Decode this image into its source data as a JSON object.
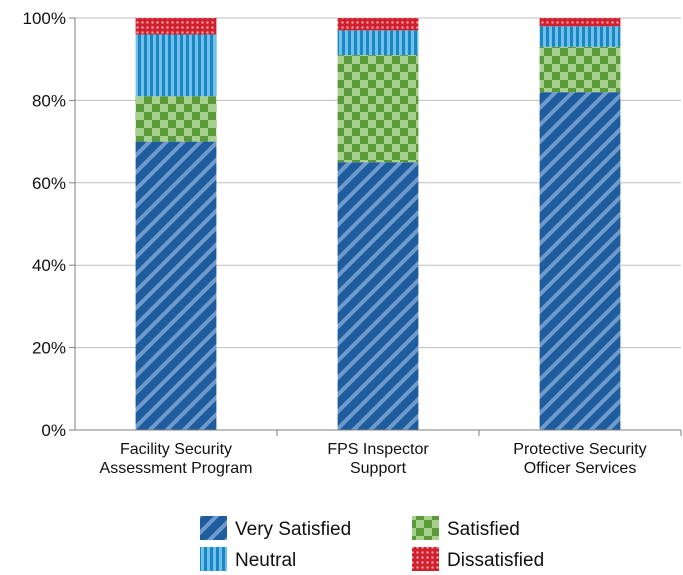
{
  "chart_data": {
    "type": "bar",
    "stacked": true,
    "percent": true,
    "categories": [
      [
        "Facility Security",
        "Assessment Program"
      ],
      [
        "FPS Inspector",
        "Support"
      ],
      [
        "Protective Security",
        "Officer Services"
      ]
    ],
    "series": [
      {
        "name": "Very Satisfied",
        "values": [
          70,
          65,
          82
        ],
        "color": "#1F5C9E",
        "pattern": "diagonal-stripe"
      },
      {
        "name": "Satisfied",
        "values": [
          11,
          26,
          11
        ],
        "color": "#77B043",
        "pattern": "checkerboard"
      },
      {
        "name": "Neutral",
        "values": [
          15,
          6,
          5
        ],
        "color": "#1F8FC9",
        "pattern": "vertical-stripe"
      },
      {
        "name": "Dissatisfied",
        "values": [
          4,
          3,
          2
        ],
        "color": "#D0202E",
        "pattern": "dotted-grid"
      }
    ],
    "ylim": [
      0,
      100
    ],
    "yticks": [
      {
        "value": 0,
        "label": "0%"
      },
      {
        "value": 20,
        "label": "20%"
      },
      {
        "value": 40,
        "label": "40%"
      },
      {
        "value": 60,
        "label": "60%"
      },
      {
        "value": 80,
        "label": "80%"
      },
      {
        "value": 100,
        "label": "100%"
      }
    ],
    "grid": true,
    "legend": "bottom",
    "title": "",
    "xlabel": "",
    "ylabel": ""
  }
}
